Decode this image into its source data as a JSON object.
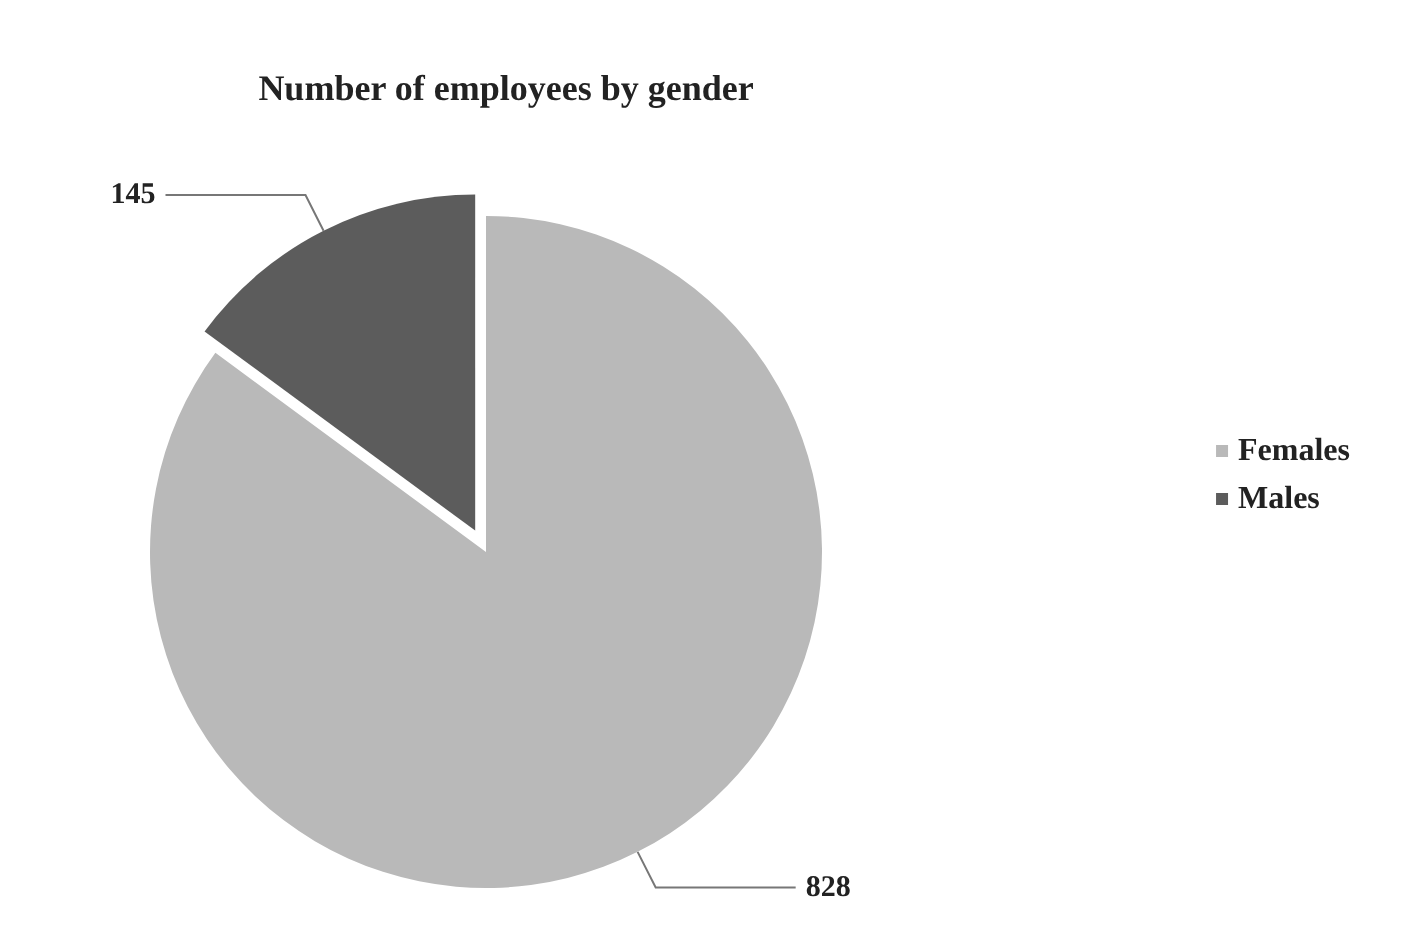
{
  "chart_data": {
    "type": "pie",
    "title": "Number of employees by gender",
    "categories": [
      "Females",
      "Males"
    ],
    "values": [
      828,
      145
    ],
    "colors": [
      "#b9b9b9",
      "#5c5c5c"
    ],
    "data_labels": true,
    "legend": "right"
  }
}
